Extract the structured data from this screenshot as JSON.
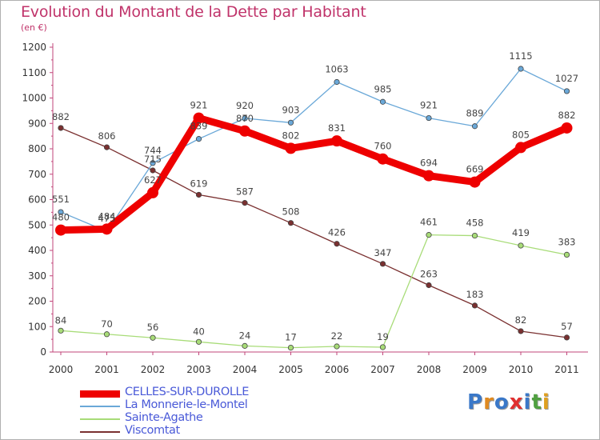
{
  "title": "Evolution du Montant de la Dette par Habitant",
  "subtitle": "(en €)",
  "logo_text": "Proxiti",
  "chart_data": {
    "type": "line",
    "title": "Evolution du Montant de la Dette par Habitant",
    "subtitle": "(en €)",
    "xlabel": "",
    "ylabel": "",
    "x": [
      "2000",
      "2001",
      "2002",
      "2003",
      "2004",
      "2005",
      "2006",
      "2007",
      "2008",
      "2009",
      "2010",
      "2011"
    ],
    "yticks": [
      "0",
      "100",
      "200",
      "300",
      "400",
      "500",
      "600",
      "700",
      "800",
      "900",
      "1000",
      "1100",
      "1200"
    ],
    "ylim": [
      0,
      1200
    ],
    "grid": false,
    "legend_position": "bottom",
    "series": [
      {
        "name": "CELLES-SUR-DUROLLE",
        "color": "#ee0000",
        "values": [
          480,
          484,
          627,
          921,
          870,
          802,
          831,
          760,
          694,
          669,
          805,
          882
        ],
        "labels": [
          "480",
          "484",
          "627",
          "921",
          "870",
          "802",
          "831",
          "760",
          "694",
          "669",
          "805",
          "882"
        ]
      },
      {
        "name": "La Monnerie-le-Montel",
        "color": "#6aa8d8",
        "values": [
          551,
          475,
          744,
          839,
          920,
          903,
          1063,
          985,
          921,
          889,
          1115,
          1027
        ],
        "labels": [
          "551",
          "475",
          "744",
          "839",
          "920",
          "903",
          "1063",
          "985",
          "921",
          "889",
          "1115",
          "1027"
        ]
      },
      {
        "name": "Sainte-Agathe",
        "color": "#a8dc78",
        "values": [
          84,
          70,
          56,
          40,
          24,
          17,
          22,
          19,
          461,
          458,
          419,
          383
        ],
        "labels": [
          "84",
          "70",
          "56",
          "40",
          "24",
          "17",
          "22",
          "19",
          "461",
          "458",
          "419",
          "383"
        ]
      },
      {
        "name": "Viscomtat",
        "color": "#7a3030",
        "values": [
          882,
          806,
          715,
          619,
          587,
          508,
          426,
          347,
          263,
          183,
          82,
          57
        ],
        "labels": [
          "882",
          "806",
          "715",
          "619",
          "587",
          "508",
          "426",
          "347",
          "263",
          "183",
          "82",
          "57"
        ]
      }
    ]
  }
}
